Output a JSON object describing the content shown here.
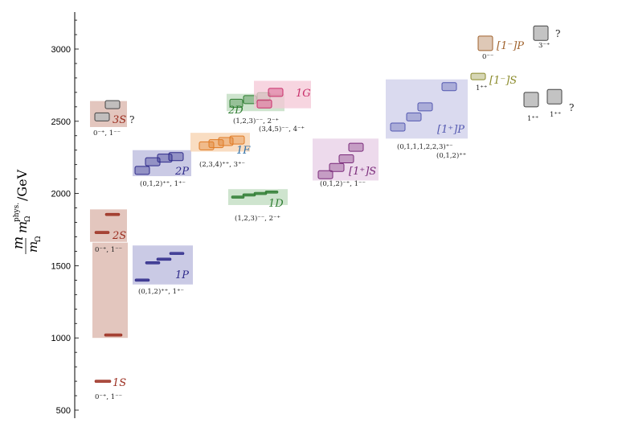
{
  "chart_data": {
    "type": "scatter",
    "y_axis": {
      "label_m": "m",
      "label_m_omega": "m",
      "label_omega_sub": "Ω",
      "label_phys_sup": "phys.",
      "label_omega_sub2": "Ω",
      "label_unit": "/GeV",
      "ticks": [
        500,
        1000,
        1500,
        2000,
        2500,
        3000
      ],
      "range": [
        470,
        3250
      ]
    },
    "colors": {
      "S": "#9b2d1f",
      "S_box": "#d9b3a8",
      "P": "#2e2a8a",
      "P_box": "#b8b8dc",
      "D": "#2f7d32",
      "D_box": "#bedbbe",
      "F": "#e07b25",
      "F_box": "#f7d2ae",
      "G": "#c92f6a",
      "G_box": "#f4c7d6",
      "hybridS": "#7a2a7a",
      "hybridS_box": "#e7cde6",
      "hybridP": "#5358b0",
      "hybridP_box": "#cdcde9",
      "exotic1P": "#a0622d",
      "exotic1S": "#8a8a2a",
      "gray": "#808080"
    },
    "groups": [
      {
        "id": "1S",
        "label": "1S",
        "jpc": "0⁻⁺, 1⁻⁻",
        "box": [
          1000,
          1660
        ],
        "levels": [
          {
            "m": 700,
            "c": "S"
          },
          {
            "m": 1020,
            "c": "S"
          }
        ]
      },
      {
        "id": "2S",
        "label": "2S",
        "jpc": "0⁻⁺, 1⁻⁻",
        "box": [
          1665,
          1890
        ],
        "levels": [
          {
            "m": 1730,
            "c": "S"
          },
          {
            "m": 1855,
            "c": "S"
          }
        ]
      },
      {
        "id": "3S",
        "label": "3S",
        "jpc": "0⁻⁺, 1⁻⁻",
        "box": [
          2460,
          2640
        ],
        "q": "?",
        "levels": [
          {
            "m": 2530,
            "c": "gray"
          },
          {
            "m": 2615,
            "c": "gray"
          }
        ]
      },
      {
        "id": "1P",
        "label": "1P",
        "jpc": "(0,1,2)⁺⁺, 1⁺⁻",
        "box": [
          1370,
          1640
        ],
        "levels": [
          {
            "m": 1400,
            "c": "P"
          },
          {
            "m": 1520,
            "c": "P"
          },
          {
            "m": 1545,
            "c": "P"
          },
          {
            "m": 1585,
            "c": "P"
          }
        ]
      },
      {
        "id": "2P",
        "label": "2P",
        "jpc": "(0,1,2)⁺⁺, 1⁺⁻",
        "box": [
          2120,
          2300
        ],
        "levels": [
          {
            "m": 2160,
            "c": "P"
          },
          {
            "m": 2220,
            "c": "P"
          },
          {
            "m": 2245,
            "c": "P"
          },
          {
            "m": 2255,
            "c": "P"
          }
        ]
      },
      {
        "id": "1D",
        "label": "1D",
        "jpc": "(1,2,3)⁻⁻, 2⁻⁺",
        "box": [
          1920,
          2030
        ],
        "levels": [
          {
            "m": 1975,
            "c": "D"
          },
          {
            "m": 1990,
            "c": "D"
          },
          {
            "m": 2000,
            "c": "D"
          },
          {
            "m": 2010,
            "c": "D"
          }
        ]
      },
      {
        "id": "2D",
        "label": "2D",
        "jpc": "(1,2,3)⁻⁻, 2⁻⁺",
        "box": [
          2570,
          2690
        ],
        "levels": [
          {
            "m": 2625,
            "c": "D"
          },
          {
            "m": 2650,
            "c": "D"
          },
          {
            "m": 2670,
            "c": "D"
          }
        ]
      },
      {
        "id": "1F",
        "label": "1F",
        "jpc": "(2,3,4)⁺⁺, 3⁺⁻",
        "box": [
          2290,
          2420
        ],
        "levels": [
          {
            "m": 2330,
            "c": "F"
          },
          {
            "m": 2345,
            "c": "F"
          },
          {
            "m": 2360,
            "c": "F"
          },
          {
            "m": 2370,
            "c": "F"
          }
        ]
      },
      {
        "id": "1G",
        "label": "1G",
        "jpc": "(3,4,5)⁻⁻, 4⁻⁺",
        "box": [
          2590,
          2780
        ],
        "levels": [
          {
            "m": 2620,
            "c": "G"
          },
          {
            "m": 2700,
            "c": "G"
          }
        ]
      },
      {
        "id": "hybS",
        "label": "[1⁺]S",
        "jpc": "(0,1,2)⁻⁺, 1⁻⁻",
        "box": [
          2090,
          2380
        ],
        "levels": [
          {
            "m": 2130,
            "c": "hybridS"
          },
          {
            "m": 2180,
            "c": "hybridS"
          },
          {
            "m": 2240,
            "c": "hybridS"
          },
          {
            "m": 2320,
            "c": "hybridS"
          }
        ]
      },
      {
        "id": "hybP",
        "label": "[1⁺]P",
        "jpc": "(0,1,1,1,2,2,3)⁺⁻",
        "jpc2": "(0,1,2)⁺⁺",
        "box": [
          2380,
          2790
        ],
        "levels": [
          {
            "m": 2460,
            "c": "hybridP"
          },
          {
            "m": 2530,
            "c": "hybridP"
          },
          {
            "m": 2600,
            "c": "hybridP"
          },
          {
            "m": 2740,
            "c": "hybridP"
          }
        ]
      },
      {
        "id": "ex1P",
        "label": "[1⁻]P",
        "jpc": "0⁻⁻",
        "levels": [
          {
            "m": 3040,
            "c": "exotic1P"
          }
        ]
      },
      {
        "id": "ex1S",
        "label": "[1⁻]S",
        "jpc": "1⁺⁺",
        "levels": [
          {
            "m": 2810,
            "c": "exotic1S"
          }
        ]
      },
      {
        "id": "g3",
        "label": "",
        "jpc": "3⁻⁺",
        "q": "?",
        "levels": [
          {
            "m": 3110,
            "c": "gray"
          }
        ]
      },
      {
        "id": "g1a",
        "label": "",
        "jpc": "1⁺⁺",
        "levels": [
          {
            "m": 2650,
            "c": "gray"
          }
        ]
      },
      {
        "id": "g1b",
        "label": "",
        "jpc": "1⁺⁺",
        "q": "?",
        "levels": [
          {
            "m": 2670,
            "c": "gray"
          }
        ]
      }
    ]
  }
}
